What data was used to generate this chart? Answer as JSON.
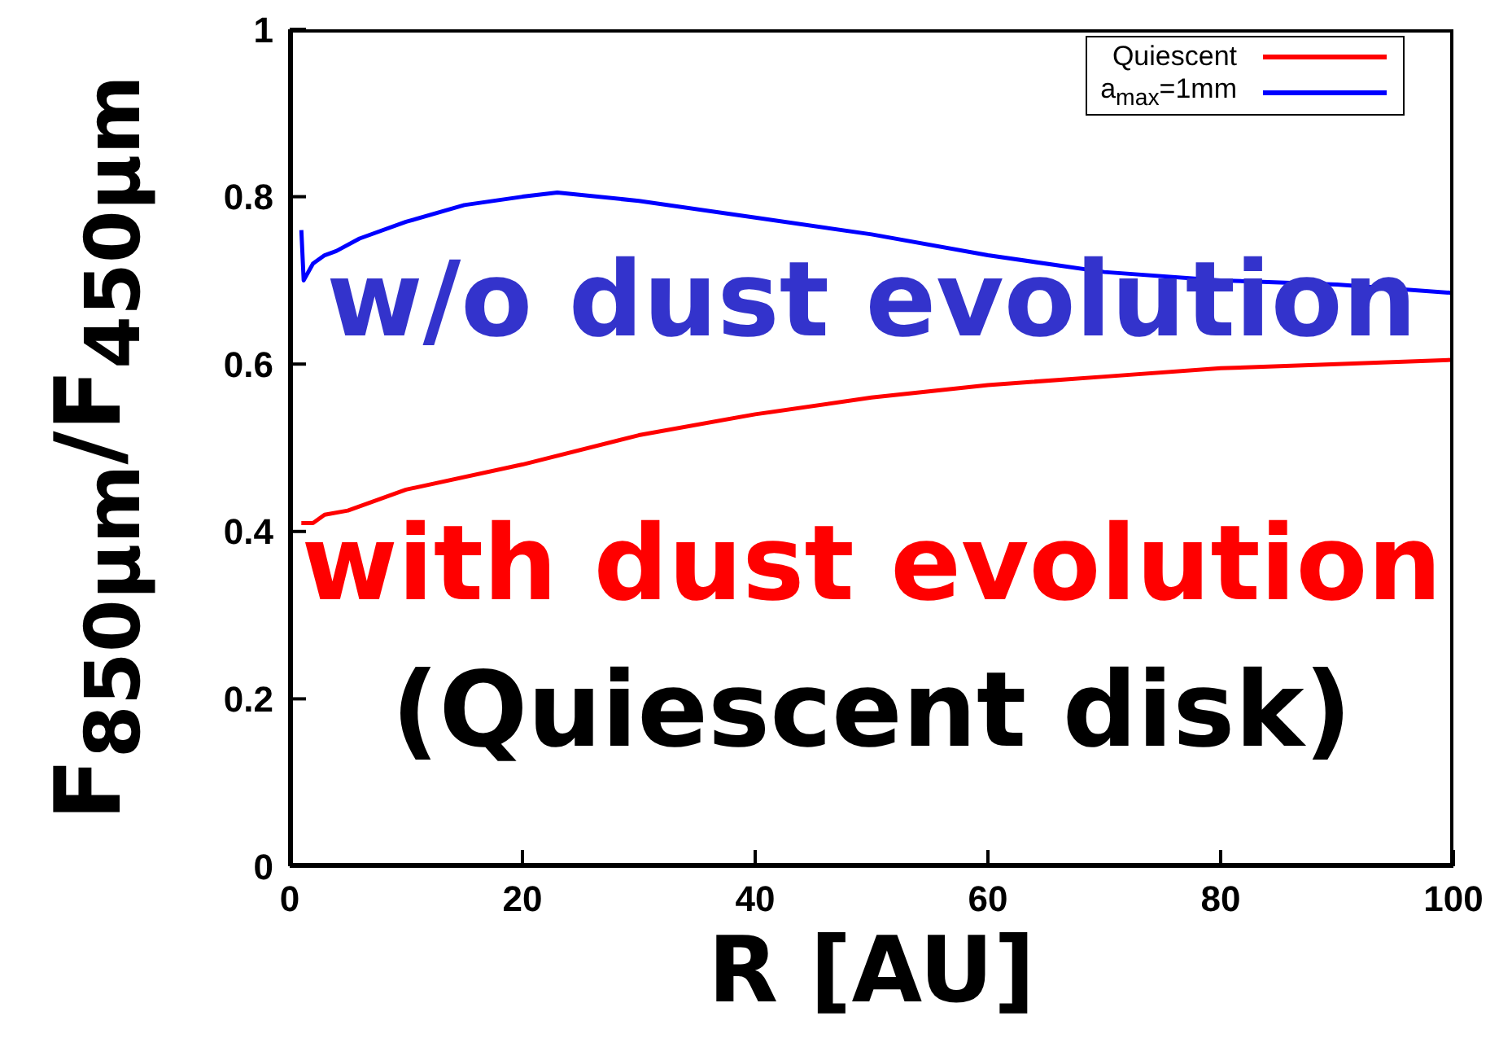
{
  "chart_data": {
    "type": "line",
    "xlabel": "R [AU]",
    "ylabel": "F$_{850μm}$/F$_{450μm}$",
    "xlim": [
      0,
      100
    ],
    "xticks": [
      0,
      20,
      40,
      60,
      80,
      100
    ],
    "ylim": [
      0,
      1
    ],
    "yticks": [
      0,
      0.2,
      0.4,
      0.6,
      0.8,
      1
    ],
    "legend": "top right",
    "grid": false,
    "marker": "none",
    "line_style": "solid",
    "series": [
      {
        "name": "Quiescent",
        "color": "#ff0000",
        "x": [
          1,
          2,
          3,
          5,
          10,
          20,
          30,
          40,
          50,
          60,
          70,
          80,
          90,
          100
        ],
        "values": [
          0.41,
          0.41,
          0.42,
          0.425,
          0.45,
          0.48,
          0.515,
          0.54,
          0.56,
          0.575,
          0.585,
          0.595,
          0.6,
          0.605
        ]
      },
      {
        "name": "a$_{max}$=1mm",
        "color": "#0000ff",
        "x": [
          1,
          1.2,
          2,
          3,
          4,
          6,
          10,
          15,
          20,
          23,
          30,
          40,
          50,
          60,
          70,
          80,
          90,
          100
        ],
        "values": [
          0.76,
          0.7,
          0.72,
          0.73,
          0.735,
          0.75,
          0.77,
          0.79,
          0.8,
          0.805,
          0.795,
          0.775,
          0.755,
          0.73,
          0.71,
          0.7,
          0.695,
          0.685
        ]
      }
    ],
    "annotations": [
      "w/o dust evolution",
      "with dust evolution",
      "(Quiescent disk)"
    ]
  }
}
